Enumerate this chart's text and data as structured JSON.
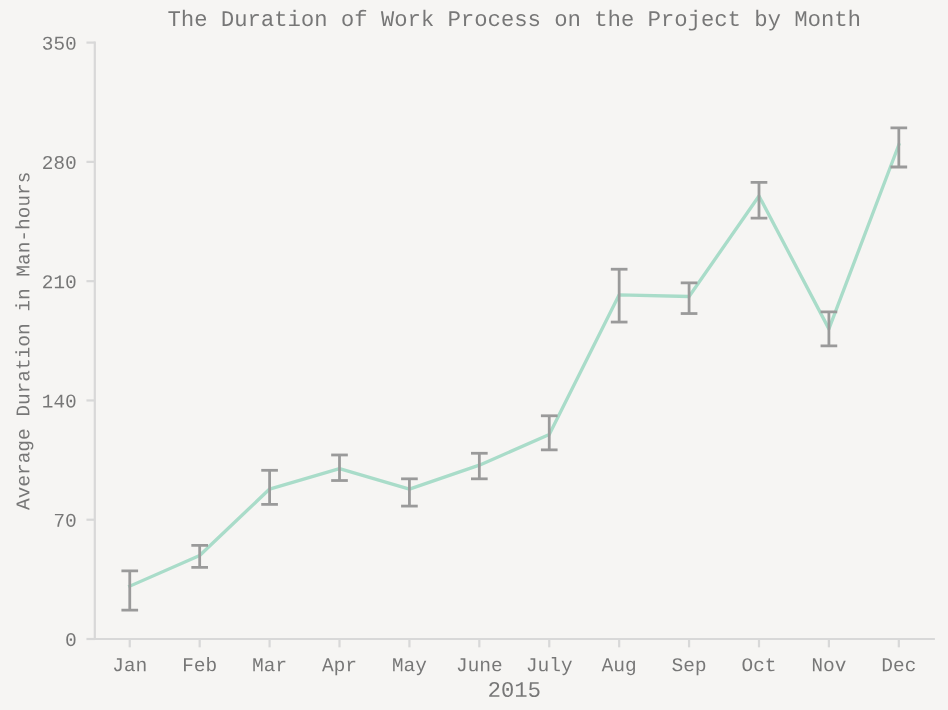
{
  "chart_data": {
    "type": "line",
    "title": "The Duration of Work Process on the Project by Month",
    "xlabel": "2015",
    "ylabel": "Average Duration in Man-hours",
    "categories": [
      "Jan",
      "Feb",
      "Mar",
      "Apr",
      "May",
      "June",
      "July",
      "Aug",
      "Sep",
      "Oct",
      "Nov",
      "Dec"
    ],
    "series": [
      {
        "color": "#a9dcc9",
        "values": [
          31,
          49,
          88,
          100,
          88,
          102,
          120,
          202,
          201,
          260,
          182,
          290
        ],
        "errors": [
          [
            17,
            40
          ],
          [
            42,
            55
          ],
          [
            79,
            99
          ],
          [
            93,
            108
          ],
          [
            78,
            94
          ],
          [
            94,
            109
          ],
          [
            111,
            131
          ],
          [
            186,
            217
          ],
          [
            191,
            209
          ],
          [
            247,
            268
          ],
          [
            172,
            192
          ],
          [
            277,
            300
          ]
        ]
      }
    ],
    "ylim": [
      0,
      350
    ],
    "yticks": [
      0,
      70,
      140,
      210,
      280,
      350
    ],
    "grid": false,
    "legend": false,
    "marker": "none",
    "line_style": "solid"
  }
}
